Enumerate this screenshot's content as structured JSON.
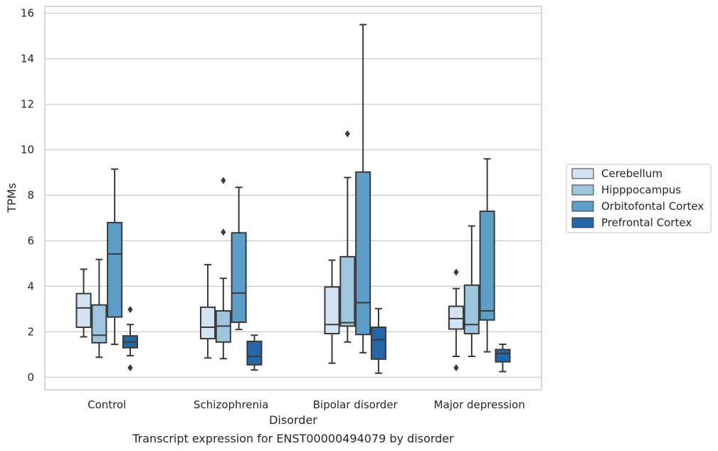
{
  "chart_data": {
    "type": "box",
    "caption": "Transcript expression for ENST00000494079 by disorder",
    "xlabel": "Disorder",
    "ylabel": "TPMs",
    "ylim": [
      -0.55,
      16.3
    ],
    "yticks": [
      0,
      2,
      4,
      6,
      8,
      10,
      12,
      14,
      16
    ],
    "grid": "horizontal",
    "legend_position": "outside-right",
    "categories": [
      "Control",
      "Schizophrenia",
      "Bipolar disorder",
      "Major depression"
    ],
    "series": [
      {
        "name": "Cerebellum",
        "color": "#d3e3f2",
        "boxes": [
          {
            "whisker_low": 1.78,
            "q1": 2.2,
            "median": 3.05,
            "q3": 3.68,
            "whisker_high": 4.75,
            "outliers": []
          },
          {
            "whisker_low": 0.85,
            "q1": 1.7,
            "median": 2.2,
            "q3": 3.08,
            "whisker_high": 4.95,
            "outliers": []
          },
          {
            "whisker_low": 0.62,
            "q1": 1.92,
            "median": 2.32,
            "q3": 3.97,
            "whisker_high": 5.15,
            "outliers": []
          },
          {
            "whisker_low": 0.92,
            "q1": 2.12,
            "median": 2.58,
            "q3": 3.12,
            "whisker_high": 3.9,
            "outliers": [
              4.62,
              0.42
            ]
          }
        ]
      },
      {
        "name": "Hipppocampus",
        "color": "#9ec5de",
        "boxes": [
          {
            "whisker_low": 0.88,
            "q1": 1.52,
            "median": 1.85,
            "q3": 3.18,
            "whisker_high": 5.18,
            "outliers": []
          },
          {
            "whisker_low": 0.82,
            "q1": 1.55,
            "median": 2.25,
            "q3": 2.92,
            "whisker_high": 4.35,
            "outliers": [
              8.65,
              6.38
            ]
          },
          {
            "whisker_low": 1.55,
            "q1": 2.25,
            "median": 2.4,
            "q3": 5.3,
            "whisker_high": 8.78,
            "outliers": [
              10.7
            ]
          },
          {
            "whisker_low": 0.92,
            "q1": 1.92,
            "median": 2.32,
            "q3": 4.05,
            "whisker_high": 6.65,
            "outliers": []
          }
        ]
      },
      {
        "name": "Orbitofontal Cortex",
        "color": "#5c9ec7",
        "boxes": [
          {
            "whisker_low": 1.45,
            "q1": 2.65,
            "median": 5.42,
            "q3": 6.8,
            "whisker_high": 9.15,
            "outliers": []
          },
          {
            "whisker_low": 2.1,
            "q1": 2.42,
            "median": 3.7,
            "q3": 6.35,
            "whisker_high": 8.35,
            "outliers": []
          },
          {
            "whisker_low": 1.08,
            "q1": 1.88,
            "median": 3.28,
            "q3": 9.02,
            "whisker_high": 15.5,
            "outliers": []
          },
          {
            "whisker_low": 1.12,
            "q1": 2.52,
            "median": 2.92,
            "q3": 7.3,
            "whisker_high": 9.6,
            "outliers": []
          }
        ]
      },
      {
        "name": "Prefrontal Cortex",
        "color": "#2466a7",
        "boxes": [
          {
            "whisker_low": 0.95,
            "q1": 1.3,
            "median": 1.55,
            "q3": 1.82,
            "whisker_high": 2.32,
            "outliers": [
              2.98,
              0.42
            ]
          },
          {
            "whisker_low": 0.32,
            "q1": 0.55,
            "median": 0.92,
            "q3": 1.58,
            "whisker_high": 1.85,
            "outliers": []
          },
          {
            "whisker_low": 0.18,
            "q1": 0.8,
            "median": 1.65,
            "q3": 2.2,
            "whisker_high": 3.02,
            "outliers": []
          },
          {
            "whisker_low": 0.25,
            "q1": 0.68,
            "median": 1.05,
            "q3": 1.22,
            "whisker_high": 1.45,
            "outliers": []
          }
        ]
      }
    ]
  }
}
